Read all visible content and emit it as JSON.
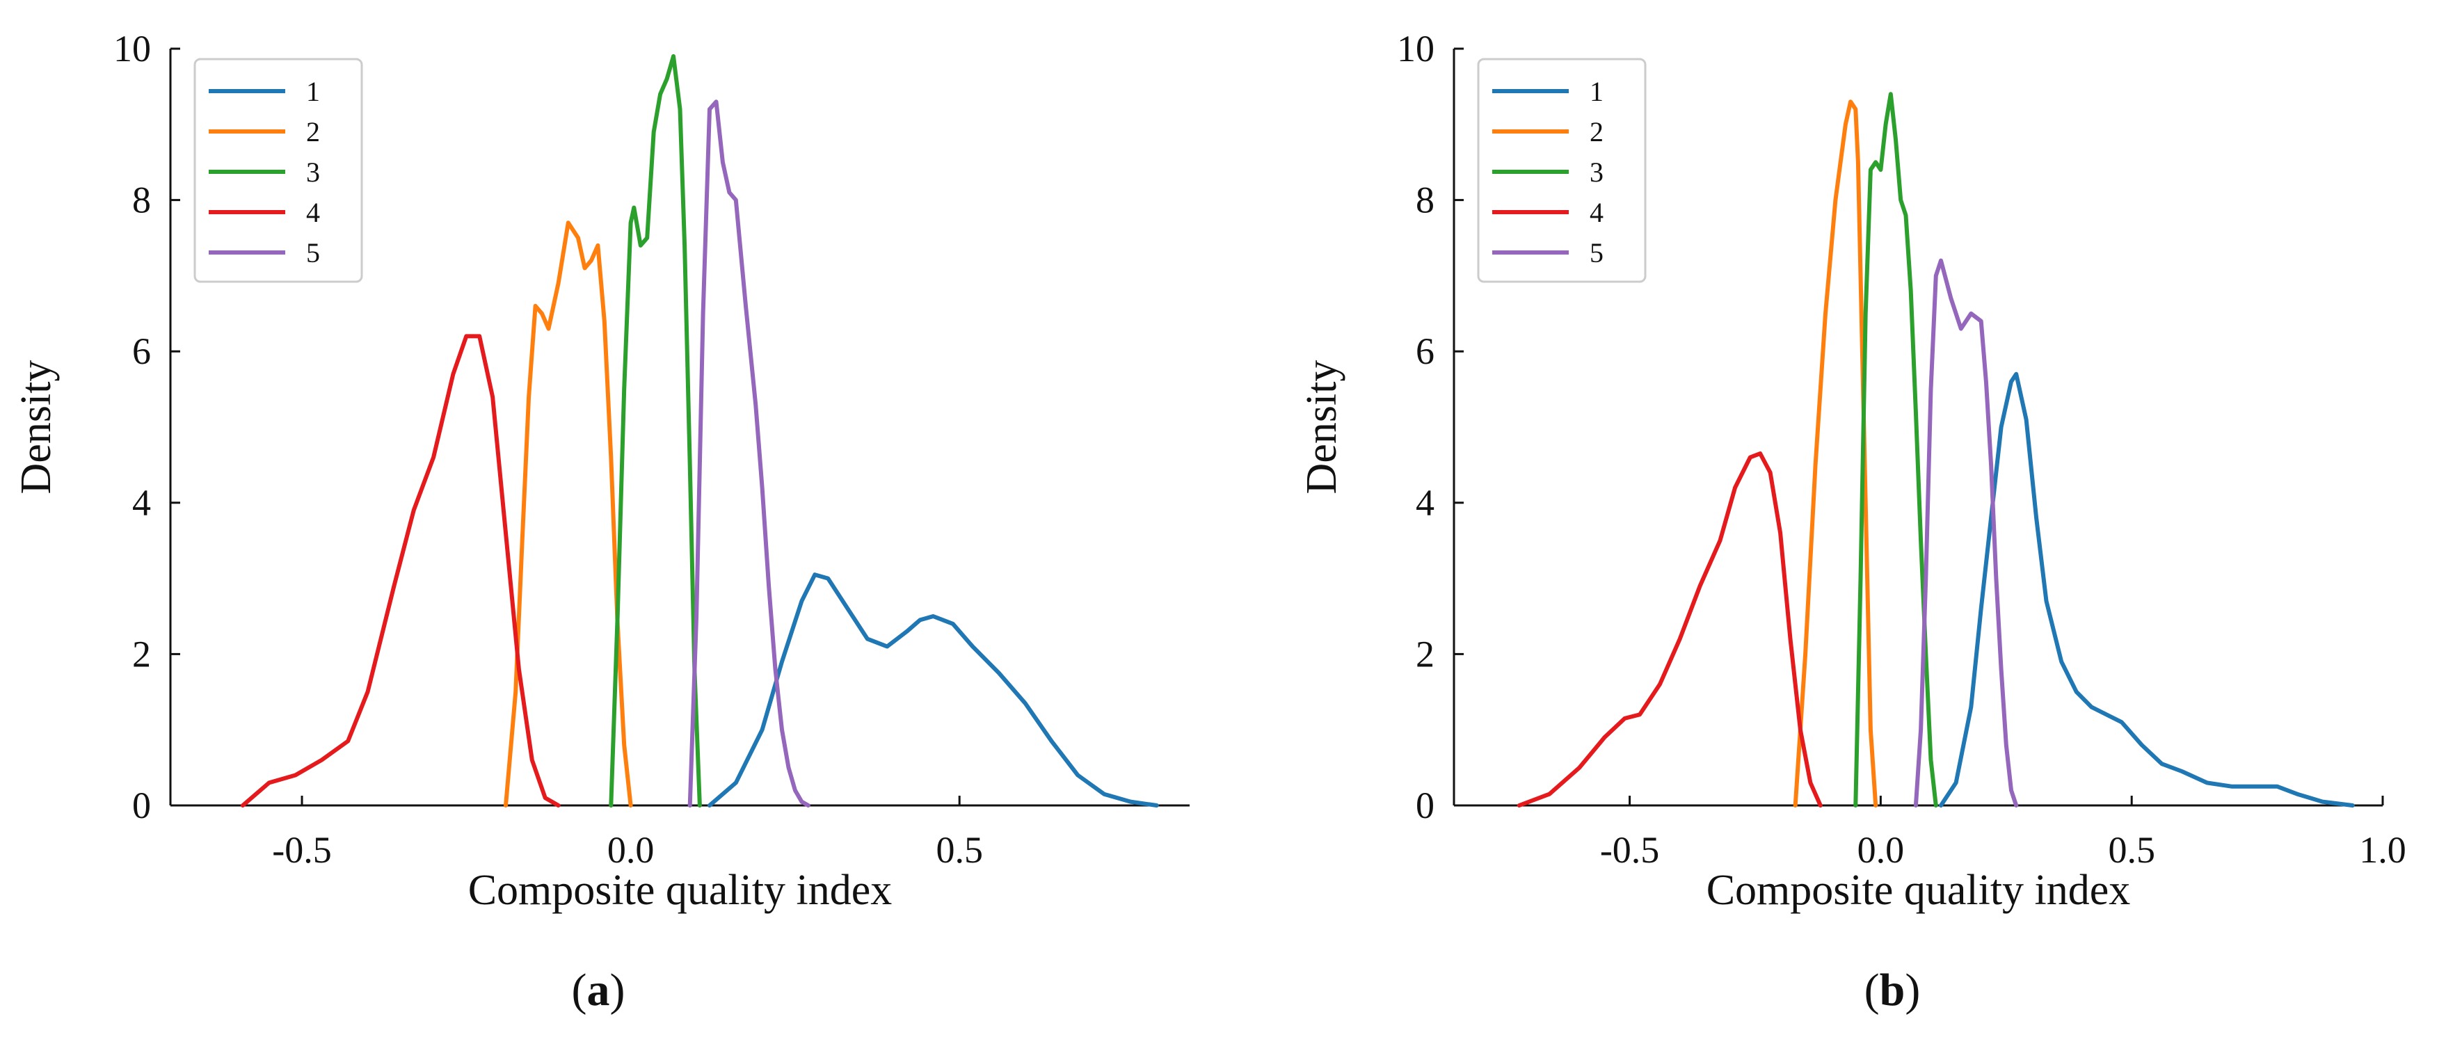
{
  "chart_data": [
    {
      "type": "line",
      "panel_label": "a",
      "xlabel": "Composite quality index",
      "ylabel": "Density",
      "xlim": [
        -0.7,
        0.85
      ],
      "ylim": [
        0,
        10
      ],
      "xticks": [
        -0.5,
        0.0,
        0.5
      ],
      "xtick_labels": [
        "-0.5",
        "0.0",
        "0.5"
      ],
      "yticks": [
        0,
        2,
        4,
        6,
        8,
        10
      ],
      "ytick_labels": [
        "0",
        "2",
        "4",
        "6",
        "8",
        "10"
      ],
      "legend_position": "top-left",
      "series": [
        {
          "name": "1",
          "color": "#1f77b4",
          "x": [
            0.12,
            0.16,
            0.2,
            0.23,
            0.26,
            0.28,
            0.3,
            0.33,
            0.36,
            0.39,
            0.42,
            0.44,
            0.46,
            0.49,
            0.52,
            0.56,
            0.6,
            0.64,
            0.68,
            0.72,
            0.76,
            0.8
          ],
          "y": [
            0,
            0.3,
            1.0,
            1.9,
            2.7,
            3.05,
            3.0,
            2.6,
            2.2,
            2.1,
            2.3,
            2.45,
            2.5,
            2.4,
            2.1,
            1.75,
            1.35,
            0.85,
            0.4,
            0.15,
            0.05,
            0
          ]
        },
        {
          "name": "2",
          "color": "#ff7f0e",
          "x": [
            -0.19,
            -0.175,
            -0.165,
            -0.155,
            -0.145,
            -0.135,
            -0.125,
            -0.11,
            -0.095,
            -0.08,
            -0.07,
            -0.06,
            -0.05,
            -0.04,
            -0.03,
            -0.02,
            -0.01,
            0.0
          ],
          "y": [
            0,
            1.5,
            3.5,
            5.4,
            6.6,
            6.5,
            6.3,
            6.9,
            7.7,
            7.5,
            7.1,
            7.2,
            7.4,
            6.4,
            4.6,
            2.4,
            0.8,
            0
          ]
        },
        {
          "name": "3",
          "color": "#2ca02c",
          "x": [
            -0.03,
            -0.02,
            -0.01,
            0.0,
            0.005,
            0.015,
            0.025,
            0.035,
            0.045,
            0.055,
            0.065,
            0.075,
            0.082,
            0.09,
            0.097,
            0.105
          ],
          "y": [
            0,
            2.5,
            5.5,
            7.7,
            7.9,
            7.4,
            7.5,
            8.9,
            9.4,
            9.6,
            9.9,
            9.2,
            7.4,
            4.5,
            1.8,
            0
          ]
        },
        {
          "name": "4",
          "color": "#e41a1c",
          "x": [
            -0.59,
            -0.55,
            -0.51,
            -0.47,
            -0.43,
            -0.4,
            -0.36,
            -0.33,
            -0.3,
            -0.27,
            -0.25,
            -0.23,
            -0.21,
            -0.19,
            -0.17,
            -0.15,
            -0.13,
            -0.11
          ],
          "y": [
            0,
            0.3,
            0.4,
            0.6,
            0.85,
            1.5,
            2.9,
            3.9,
            4.6,
            5.7,
            6.2,
            6.2,
            5.4,
            3.6,
            1.8,
            0.6,
            0.1,
            0
          ]
        },
        {
          "name": "5",
          "color": "#9467bd",
          "x": [
            0.09,
            0.1,
            0.11,
            0.12,
            0.13,
            0.14,
            0.15,
            0.16,
            0.175,
            0.19,
            0.2,
            0.21,
            0.22,
            0.23,
            0.24,
            0.25,
            0.26,
            0.27
          ],
          "y": [
            0,
            2.5,
            6.5,
            9.2,
            9.3,
            8.5,
            8.1,
            8.0,
            6.6,
            5.3,
            4.2,
            2.9,
            1.8,
            1.0,
            0.5,
            0.2,
            0.05,
            0
          ]
        }
      ]
    },
    {
      "type": "line",
      "panel_label": "b",
      "xlabel": "Composite quality index",
      "ylabel": "Density",
      "xlim": [
        -0.85,
        1.0
      ],
      "ylim": [
        0,
        10
      ],
      "xticks": [
        -0.5,
        0.0,
        0.5,
        1.0
      ],
      "xtick_labels": [
        "-0.5",
        "0.0",
        "0.5",
        "1.0"
      ],
      "yticks": [
        0,
        2,
        4,
        6,
        8,
        10
      ],
      "ytick_labels": [
        "0",
        "2",
        "4",
        "6",
        "8",
        "10"
      ],
      "legend_position": "top-left",
      "series": [
        {
          "name": "1",
          "color": "#1f77b4",
          "x": [
            0.12,
            0.15,
            0.18,
            0.2,
            0.22,
            0.24,
            0.26,
            0.27,
            0.29,
            0.31,
            0.33,
            0.36,
            0.39,
            0.42,
            0.45,
            0.48,
            0.52,
            0.56,
            0.6,
            0.65,
            0.7,
            0.75,
            0.79,
            0.83,
            0.88,
            0.94
          ],
          "y": [
            0,
            0.3,
            1.3,
            2.6,
            3.8,
            5.0,
            5.6,
            5.7,
            5.1,
            3.8,
            2.7,
            1.9,
            1.5,
            1.3,
            1.2,
            1.1,
            0.8,
            0.55,
            0.45,
            0.3,
            0.25,
            0.25,
            0.25,
            0.15,
            0.05,
            0
          ]
        },
        {
          "name": "2",
          "color": "#ff7f0e",
          "x": [
            -0.17,
            -0.15,
            -0.13,
            -0.11,
            -0.09,
            -0.07,
            -0.06,
            -0.05,
            -0.045,
            -0.04,
            -0.03,
            -0.02,
            -0.01
          ],
          "y": [
            0,
            2.0,
            4.5,
            6.5,
            8.0,
            9.0,
            9.3,
            9.2,
            8.5,
            7.0,
            4.0,
            1.0,
            0
          ]
        },
        {
          "name": "3",
          "color": "#2ca02c",
          "x": [
            -0.05,
            -0.04,
            -0.03,
            -0.02,
            -0.01,
            0.0,
            0.01,
            0.02,
            0.03,
            0.04,
            0.05,
            0.06,
            0.07,
            0.08,
            0.09,
            0.1,
            0.11
          ],
          "y": [
            0,
            3.0,
            6.5,
            8.4,
            8.5,
            8.4,
            9.0,
            9.4,
            8.8,
            8.0,
            7.8,
            6.8,
            5.2,
            3.5,
            2.0,
            0.6,
            0
          ]
        },
        {
          "name": "4",
          "color": "#e41a1c",
          "x": [
            -0.72,
            -0.66,
            -0.6,
            -0.55,
            -0.51,
            -0.48,
            -0.44,
            -0.4,
            -0.36,
            -0.32,
            -0.29,
            -0.26,
            -0.24,
            -0.22,
            -0.2,
            -0.18,
            -0.16,
            -0.14,
            -0.12
          ],
          "y": [
            0,
            0.15,
            0.5,
            0.9,
            1.15,
            1.2,
            1.6,
            2.2,
            2.9,
            3.5,
            4.2,
            4.6,
            4.65,
            4.4,
            3.6,
            2.2,
            1.0,
            0.3,
            0
          ]
        },
        {
          "name": "5",
          "color": "#9467bd",
          "x": [
            0.07,
            0.08,
            0.09,
            0.1,
            0.11,
            0.12,
            0.14,
            0.16,
            0.18,
            0.2,
            0.21,
            0.22,
            0.23,
            0.24,
            0.25,
            0.26,
            0.27
          ],
          "y": [
            0,
            1.0,
            3.0,
            5.5,
            7.0,
            7.2,
            6.7,
            6.3,
            6.5,
            6.4,
            5.6,
            4.5,
            3.0,
            1.8,
            0.8,
            0.2,
            0
          ]
        }
      ]
    }
  ]
}
